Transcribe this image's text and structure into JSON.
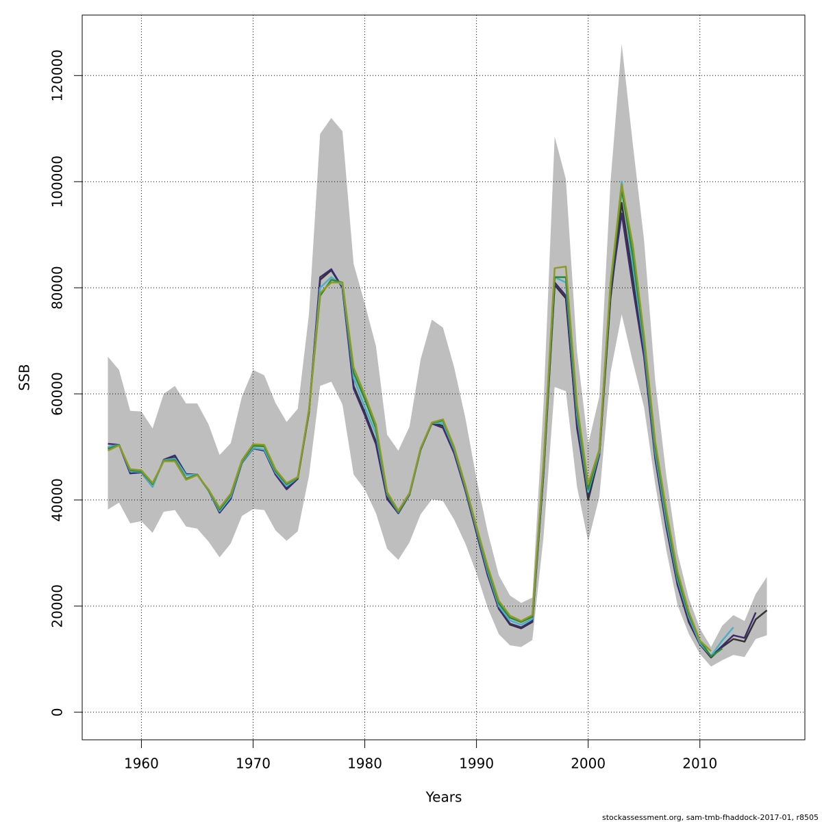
{
  "chart_data": {
    "type": "line",
    "x_label": "Years",
    "y_label": "SSB",
    "footer": "stockassessment.org, sam-tmb-fhaddock-2017-01, r8505",
    "x": [
      1957,
      1958,
      1959,
      1960,
      1961,
      1962,
      1963,
      1964,
      1965,
      1966,
      1967,
      1968,
      1969,
      1970,
      1971,
      1972,
      1973,
      1974,
      1975,
      1976,
      1977,
      1978,
      1979,
      1980,
      1981,
      1982,
      1983,
      1984,
      1985,
      1986,
      1987,
      1988,
      1989,
      1990,
      1991,
      1992,
      1993,
      1994,
      1995,
      1996,
      1997,
      1998,
      1999,
      2000,
      2001,
      2002,
      2003,
      2004,
      2005,
      2006,
      2007,
      2008,
      2009,
      2010,
      2011,
      2012,
      2013,
      2014,
      2015,
      2016
    ],
    "band": {
      "color": "#bebebe",
      "upper": [
        67000,
        64500,
        56800,
        56700,
        53500,
        60000,
        61500,
        58200,
        58200,
        54300,
        48500,
        50700,
        59500,
        64500,
        63500,
        58300,
        54700,
        57200,
        75000,
        109000,
        112000,
        109500,
        84500,
        77000,
        69000,
        52300,
        49300,
        53800,
        66500,
        74000,
        72500,
        65000,
        55500,
        44000,
        34000,
        25800,
        22000,
        20600,
        21600,
        58000,
        108500,
        100500,
        68000,
        50500,
        59500,
        100000,
        126000,
        107000,
        89000,
        62500,
        44500,
        30000,
        21500,
        15800,
        12300,
        16300,
        18300,
        17200,
        22300,
        25500
      ],
      "lower": [
        38200,
        39500,
        35600,
        36000,
        33800,
        37800,
        38100,
        35000,
        34600,
        32200,
        29200,
        31800,
        37000,
        38300,
        38100,
        34300,
        32300,
        34100,
        44500,
        61500,
        62300,
        58000,
        44800,
        42000,
        37500,
        30800,
        28700,
        32000,
        37300,
        40100,
        39800,
        36300,
        31800,
        26200,
        19700,
        14700,
        12600,
        12300,
        13600,
        33000,
        61300,
        60500,
        42500,
        32200,
        40600,
        64000,
        75000,
        66000,
        57500,
        43000,
        30500,
        20200,
        14800,
        11000,
        8600,
        9800,
        10800,
        10400,
        13800,
        14500
      ]
    },
    "series": [
      {
        "color": "#333333",
        "values": [
          49800,
          50400,
          45500,
          45300,
          42800,
          47500,
          48000,
          44800,
          44800,
          41800,
          37800,
          40500,
          47000,
          49800,
          49400,
          45000,
          42300,
          44200,
          56500,
          81500,
          83300,
          80000,
          61500,
          56500,
          51000,
          40500,
          37500,
          41000,
          49500,
          54500,
          54000,
          49000,
          42000,
          34000,
          26000,
          19500,
          16500,
          15800,
          17000,
          45000,
          80500,
          78000,
          54000,
          40000,
          48500,
          78000,
          96000,
          82000,
          68000,
          48000,
          35000,
          24000,
          17000,
          12800,
          10300,
          12300,
          13800,
          13300,
          17500,
          19200
        ]
      },
      {
        "color": "#3d2b6e",
        "values": [
          50600,
          50400,
          45000,
          45200,
          42500,
          47600,
          48400,
          44900,
          44800,
          41800,
          37600,
          40200,
          47000,
          49700,
          49300,
          44800,
          42000,
          44000,
          56500,
          82000,
          83500,
          80000,
          61000,
          56000,
          50500,
          40200,
          37500,
          41000,
          49500,
          54400,
          53600,
          48800,
          41800,
          33800,
          25800,
          19500,
          16700,
          16000,
          17200,
          45000,
          81000,
          78500,
          53500,
          41000,
          48500,
          79000,
          94000,
          80000,
          67000,
          47800,
          34800,
          24000,
          17200,
          12900,
          10400,
          12500,
          14500,
          14000,
          18800,
          null
        ]
      },
      {
        "color": "#4ab0c8",
        "values": [
          50000,
          50400,
          45400,
          45300,
          42500,
          47500,
          47800,
          44700,
          44800,
          41800,
          37900,
          40600,
          47100,
          49800,
          49500,
          45200,
          42600,
          44200,
          56800,
          80000,
          82000,
          80500,
          63000,
          57500,
          52500,
          41000,
          37700,
          41100,
          49600,
          54500,
          54500,
          49500,
          42300,
          34500,
          26500,
          20000,
          17300,
          16500,
          17600,
          46000,
          82000,
          81000,
          56000,
          41500,
          49000,
          80000,
          100000,
          84000,
          69000,
          49000,
          36000,
          25000,
          18000,
          13000,
          10600,
          13500,
          16000,
          null,
          null,
          null
        ]
      },
      {
        "color": "#2a8a3a",
        "values": [
          49600,
          50400,
          45600,
          45400,
          43000,
          47400,
          47500,
          44000,
          44800,
          41900,
          38200,
          41000,
          47300,
          50200,
          50100,
          45500,
          43000,
          44200,
          56800,
          78500,
          81500,
          81000,
          64000,
          59000,
          53500,
          41200,
          37800,
          41200,
          49700,
          54500,
          55000,
          49800,
          42500,
          34800,
          27000,
          20500,
          17800,
          17000,
          18000,
          46500,
          82000,
          82000,
          57000,
          42000,
          49500,
          80000,
          98500,
          86000,
          70000,
          50000,
          37000,
          25500,
          18500,
          13500,
          10500,
          12000,
          null,
          null,
          null,
          null
        ]
      },
      {
        "color": "#8f9a22",
        "values": [
          49300,
          50300,
          45800,
          45600,
          43200,
          47300,
          47300,
          43800,
          44700,
          42000,
          38500,
          41200,
          47500,
          50500,
          50400,
          45800,
          43200,
          44300,
          57000,
          79000,
          81000,
          81000,
          65000,
          59800,
          54200,
          41500,
          38000,
          41300,
          49800,
          54600,
          55200,
          50000,
          42800,
          35000,
          27500,
          21000,
          18200,
          17200,
          18300,
          47000,
          83700,
          84000,
          58000,
          43000,
          49500,
          81000,
          99500,
          88000,
          71000,
          51000,
          38000,
          26500,
          19000,
          13500,
          11500,
          null,
          null,
          null,
          null,
          null
        ]
      }
    ],
    "xlim": [
      1954.7,
      2019.4
    ],
    "ylim": [
      -5200,
      131400
    ],
    "xticks": [
      1960,
      1970,
      1980,
      1990,
      2000,
      2010
    ],
    "yticks": [
      0,
      20000,
      40000,
      60000,
      80000,
      100000,
      120000
    ],
    "grid": true
  }
}
